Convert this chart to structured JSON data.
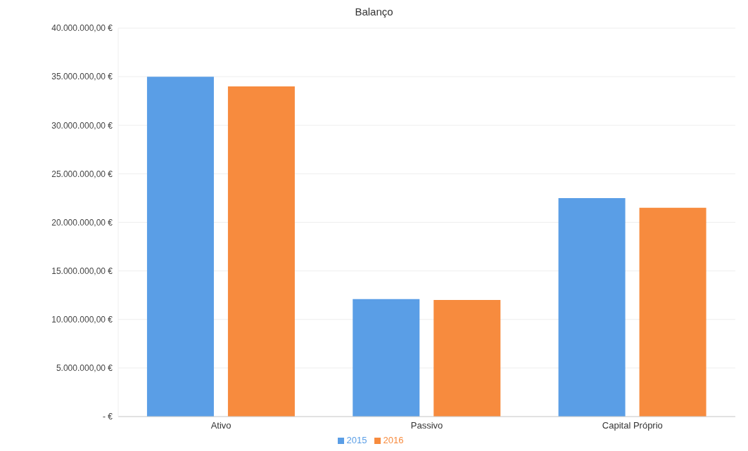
{
  "chart_data": {
    "type": "bar",
    "title": "Balanço",
    "categories": [
      "Ativo",
      "Passivo",
      "Capital Próprio"
    ],
    "series": [
      {
        "name": "2015",
        "color": "#5a9ee6",
        "values": [
          35000000,
          12100000,
          22500000
        ]
      },
      {
        "name": "2016",
        "color": "#f78b3e",
        "values": [
          34000000,
          12000000,
          21500000
        ]
      }
    ],
    "ylim": [
      0,
      40000000
    ],
    "yticks": [
      {
        "value": 0,
        "label": "-   €"
      },
      {
        "value": 5000000,
        "label": "5.000.000,00 €"
      },
      {
        "value": 10000000,
        "label": "10.000.000,00 €"
      },
      {
        "value": 15000000,
        "label": "15.000.000,00 €"
      },
      {
        "value": 20000000,
        "label": "20.000.000,00 €"
      },
      {
        "value": 25000000,
        "label": "25.000.000,00 €"
      },
      {
        "value": 30000000,
        "label": "30.000.000,00 €"
      },
      {
        "value": 35000000,
        "label": "35.000.000,00 €"
      },
      {
        "value": 40000000,
        "label": "40.000.000,00 €"
      }
    ],
    "grid": "y",
    "legend": "bottom"
  }
}
